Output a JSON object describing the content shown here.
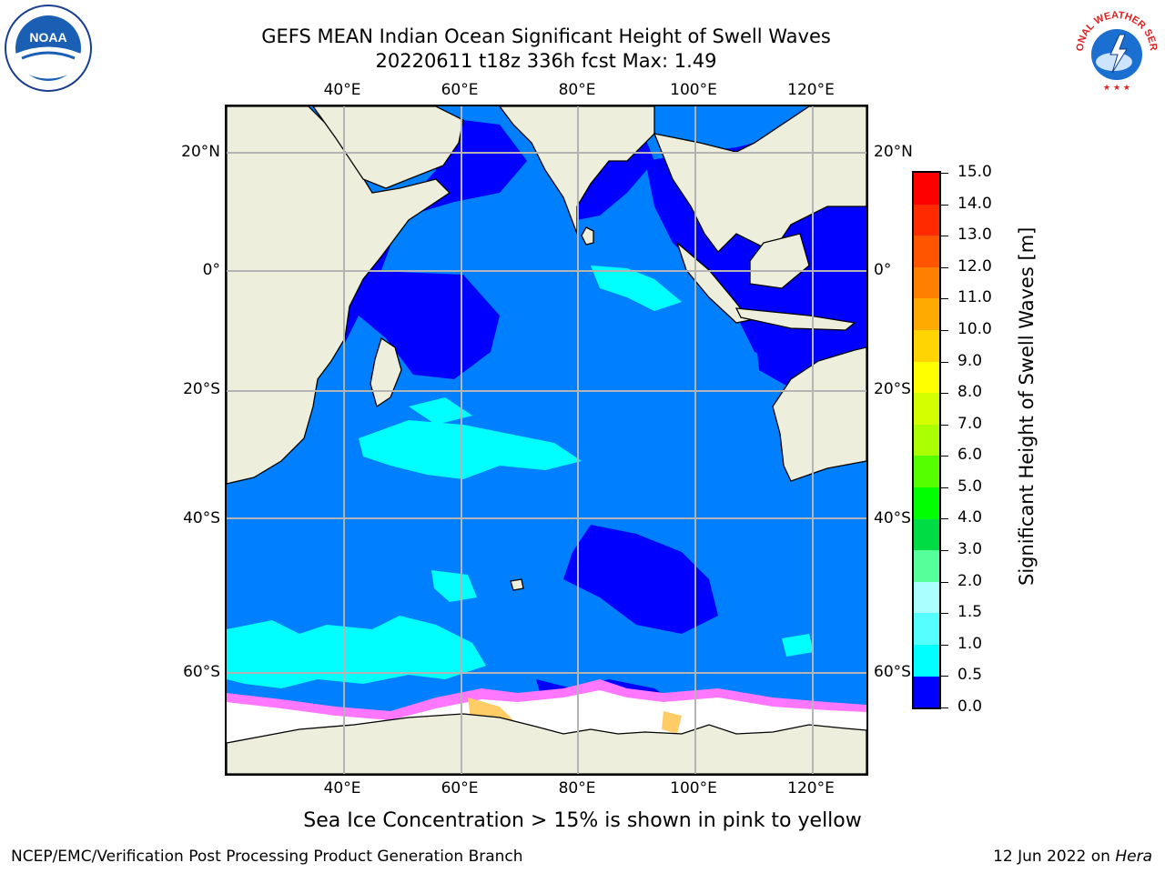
{
  "title": {
    "line1": "GEFS MEAN Indian Ocean Significant Height of Swell Waves",
    "line2": "20220611 t18z 336h fcst   Max: 1.49"
  },
  "logos": {
    "left": {
      "name": "noaa-logo",
      "text": "NOAA"
    },
    "right": {
      "name": "nws-logo",
      "text": "NATIONAL WEATHER SERVICE"
    }
  },
  "map": {
    "lon_labels": [
      "40°E",
      "60°E",
      "80°E",
      "100°E",
      "120°E"
    ],
    "lat_labels": [
      "20°N",
      "0°",
      "20°S",
      "40°S",
      "60°S"
    ],
    "lon_extent": [
      20,
      130
    ],
    "lat_extent": [
      -80,
      28
    ],
    "colors": {
      "land": "#eeeedd",
      "ice": "#ffffff",
      "ocean_low": "#0000ff",
      "ocean_mid": "#0080ff",
      "ocean_high": "#00ffff"
    }
  },
  "colorbar": {
    "label": "Significant Height of Swell Waves [m]",
    "ticks": [
      "15.0",
      "14.0",
      "13.0",
      "12.0",
      "11.0",
      "10.0",
      "9.0",
      "8.0",
      "7.0",
      "6.0",
      "5.0",
      "4.0",
      "3.0",
      "2.0",
      "1.5",
      "1.0",
      "0.5",
      "0.0"
    ],
    "colors": [
      "#ff0000",
      "#ff2a00",
      "#ff5500",
      "#ff8000",
      "#ffaa00",
      "#ffd400",
      "#ffff00",
      "#d4ff00",
      "#aaff00",
      "#55ff00",
      "#00ff00",
      "#00dd44",
      "#55ff99",
      "#aaffff",
      "#55ffff",
      "#00ffff",
      "#0080ff",
      "#0000ff"
    ]
  },
  "caption": "Sea Ice Concentration > 15% is shown in pink to yellow",
  "footer": {
    "left": "NCEP/EMC/Verification Post Processing Product Generation Branch",
    "right_date": "12 Jun 2022 on ",
    "right_host": "Hera"
  }
}
